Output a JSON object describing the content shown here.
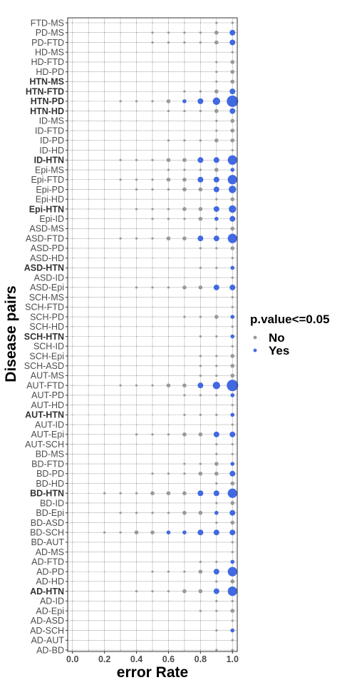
{
  "chart_data": {
    "type": "scatter",
    "xlabel": "error Rate",
    "ylabel": "Disease pairs",
    "x_ticks": [
      0.0,
      0.2,
      0.4,
      0.6,
      0.8,
      1.0
    ],
    "x_tick_labels": [
      "0.0",
      "0.2",
      "0.4",
      "0.6",
      "0.8",
      "1.0"
    ],
    "x_values": [
      0.0,
      0.1,
      0.2,
      0.3,
      0.4,
      0.5,
      0.6,
      0.7,
      0.8,
      0.9,
      1.0
    ],
    "xlim": [
      -0.03,
      1.03
    ],
    "grid": true,
    "legend": {
      "title": "p.value<=0.05",
      "position": "right",
      "entries": [
        {
          "label": "No",
          "color": "#999999"
        },
        {
          "label": "Yes",
          "color": "#4169E1"
        }
      ]
    },
    "colors": {
      "No": "#999999",
      "Yes": "#4169E1"
    },
    "categories": [
      "FTD-MS",
      "PD-MS",
      "PD-FTD",
      "HD-MS",
      "HD-FTD",
      "HD-PD",
      "HTN-MS",
      "HTN-FTD",
      "HTN-PD",
      "HTN-HD",
      "ID-MS",
      "ID-FTD",
      "ID-PD",
      "ID-HD",
      "ID-HTN",
      "Epi-MS",
      "Epi-FTD",
      "Epi-PD",
      "Epi-HD",
      "Epi-HTN",
      "Epi-ID",
      "ASD-MS",
      "ASD-FTD",
      "ASD-PD",
      "ASD-HD",
      "ASD-HTN",
      "ASD-ID",
      "ASD-Epi",
      "SCH-MS",
      "SCH-FTD",
      "SCH-PD",
      "SCH-HD",
      "SCH-HTN",
      "SCH-ID",
      "SCH-Epi",
      "SCH-ASD",
      "AUT-MS",
      "AUT-FTD",
      "AUT-PD",
      "AUT-HD",
      "AUT-HTN",
      "AUT-ID",
      "AUT-Epi",
      "AUT-SCH",
      "BD-MS",
      "BD-FTD",
      "BD-PD",
      "BD-HD",
      "BD-HTN",
      "BD-ID",
      "BD-Epi",
      "BD-ASD",
      "BD-SCH",
      "BD-AUT",
      "AD-MS",
      "AD-FTD",
      "AD-PD",
      "AD-HD",
      "AD-HTN",
      "AD-ID",
      "AD-Epi",
      "AD-ASD",
      "AD-SCH",
      "AD-AUT",
      "AD-BD"
    ],
    "bold_categories": [
      "HTN-MS",
      "HTN-FTD",
      "HTN-PD",
      "HTN-HD",
      "ID-HTN",
      "Epi-HTN",
      "ASD-HTN",
      "SCH-HTN",
      "AUT-HTN",
      "BD-HTN",
      "AD-HTN"
    ],
    "sizes": {
      "FTD-MS": [
        1,
        1,
        1,
        1,
        1,
        1,
        1,
        1,
        1,
        2,
        2
      ],
      "PD-MS": [
        1,
        1,
        1,
        1,
        1,
        2,
        2,
        2,
        2,
        3,
        4
      ],
      "PD-FTD": [
        1,
        1,
        1,
        1,
        1,
        2,
        2,
        2,
        2,
        3,
        4
      ],
      "HD-MS": [
        1,
        1,
        1,
        1,
        1,
        1,
        1,
        1,
        1,
        1,
        2
      ],
      "HD-FTD": [
        1,
        1,
        1,
        1,
        1,
        1,
        1,
        1,
        1,
        2,
        3
      ],
      "HD-PD": [
        1,
        1,
        1,
        1,
        1,
        1,
        1,
        1,
        1,
        2,
        3
      ],
      "HTN-MS": [
        1,
        1,
        1,
        1,
        1,
        1,
        1,
        1,
        1,
        2,
        3
      ],
      "HTN-FTD": [
        1,
        1,
        1,
        1,
        1,
        1,
        1,
        2,
        2,
        3,
        4
      ],
      "HTN-PD": [
        1,
        1,
        1,
        2,
        2,
        2,
        3,
        3,
        4,
        5,
        7
      ],
      "HTN-HD": [
        1,
        1,
        1,
        1,
        1,
        1,
        2,
        2,
        2,
        3,
        4
      ],
      "ID-MS": [
        1,
        1,
        1,
        1,
        1,
        1,
        1,
        1,
        1,
        2,
        3
      ],
      "ID-FTD": [
        1,
        1,
        1,
        1,
        1,
        1,
        1,
        1,
        1,
        2,
        3
      ],
      "ID-PD": [
        1,
        1,
        1,
        1,
        1,
        1,
        2,
        2,
        2,
        3,
        3
      ],
      "ID-HD": [
        1,
        1,
        1,
        1,
        1,
        1,
        1,
        1,
        1,
        1,
        2
      ],
      "ID-HTN": [
        1,
        1,
        1,
        2,
        2,
        2,
        3,
        3,
        4,
        4,
        6
      ],
      "Epi-MS": [
        1,
        1,
        1,
        1,
        1,
        1,
        2,
        2,
        2,
        3,
        3
      ],
      "Epi-FTD": [
        1,
        1,
        1,
        2,
        2,
        2,
        3,
        3,
        4,
        4,
        6
      ],
      "Epi-PD": [
        1,
        1,
        1,
        1,
        2,
        2,
        2,
        3,
        3,
        4,
        5
      ],
      "Epi-HD": [
        1,
        1,
        1,
        1,
        1,
        1,
        1,
        1,
        1,
        2,
        3
      ],
      "Epi-HTN": [
        1,
        1,
        1,
        1,
        2,
        2,
        2,
        3,
        3,
        4,
        5
      ],
      "Epi-ID": [
        1,
        1,
        1,
        1,
        1,
        2,
        2,
        2,
        3,
        3,
        4
      ],
      "ASD-MS": [
        1,
        1,
        1,
        1,
        1,
        1,
        1,
        1,
        1,
        2,
        3
      ],
      "ASD-FTD": [
        1,
        1,
        1,
        2,
        2,
        2,
        3,
        3,
        4,
        4,
        6
      ],
      "ASD-PD": [
        1,
        1,
        1,
        1,
        1,
        1,
        1,
        1,
        2,
        2,
        3
      ],
      "ASD-HD": [
        1,
        1,
        1,
        1,
        1,
        1,
        1,
        1,
        1,
        1,
        2
      ],
      "ASD-HTN": [
        1,
        1,
        1,
        1,
        1,
        1,
        1,
        1,
        2,
        2,
        3
      ],
      "ASD-ID": [
        1,
        1,
        1,
        1,
        1,
        1,
        1,
        1,
        1,
        1,
        2
      ],
      "ASD-Epi": [
        1,
        1,
        1,
        1,
        2,
        2,
        2,
        3,
        3,
        4,
        4
      ],
      "SCH-MS": [
        1,
        1,
        1,
        1,
        1,
        1,
        1,
        1,
        1,
        1,
        2
      ],
      "SCH-FTD": [
        1,
        1,
        1,
        1,
        1,
        1,
        1,
        1,
        1,
        1,
        2
      ],
      "SCH-PD": [
        1,
        1,
        1,
        1,
        1,
        1,
        1,
        2,
        2,
        3,
        3
      ],
      "SCH-HD": [
        1,
        1,
        1,
        1,
        1,
        1,
        1,
        1,
        1,
        1,
        2
      ],
      "SCH-HTN": [
        1,
        1,
        1,
        1,
        1,
        1,
        1,
        1,
        2,
        2,
        3
      ],
      "SCH-ID": [
        1,
        1,
        1,
        1,
        1,
        1,
        1,
        1,
        1,
        1,
        2
      ],
      "SCH-Epi": [
        1,
        1,
        1,
        1,
        1,
        1,
        1,
        1,
        2,
        2,
        3
      ],
      "SCH-ASD": [
        1,
        1,
        1,
        1,
        1,
        1,
        1,
        1,
        2,
        2,
        3
      ],
      "AUT-MS": [
        1,
        1,
        1,
        1,
        1,
        1,
        1,
        1,
        2,
        2,
        3
      ],
      "AUT-FTD": [
        1,
        1,
        1,
        2,
        2,
        2,
        3,
        3,
        4,
        5,
        7
      ],
      "AUT-PD": [
        1,
        1,
        1,
        1,
        1,
        1,
        1,
        2,
        2,
        2,
        3
      ],
      "AUT-HD": [
        1,
        1,
        1,
        1,
        1,
        1,
        1,
        1,
        1,
        1,
        2
      ],
      "AUT-HTN": [
        1,
        1,
        1,
        1,
        1,
        1,
        1,
        2,
        2,
        2,
        3
      ],
      "AUT-ID": [
        1,
        1,
        1,
        1,
        1,
        1,
        1,
        1,
        1,
        1,
        2
      ],
      "AUT-Epi": [
        1,
        1,
        1,
        1,
        2,
        2,
        2,
        3,
        3,
        4,
        4
      ],
      "AUT-SCH": [
        1,
        1,
        1,
        1,
        1,
        1,
        1,
        1,
        1,
        2,
        2
      ],
      "BD-MS": [
        1,
        1,
        1,
        1,
        1,
        1,
        1,
        1,
        1,
        2,
        2
      ],
      "BD-FTD": [
        1,
        1,
        1,
        1,
        1,
        1,
        1,
        2,
        2,
        3,
        3
      ],
      "BD-PD": [
        1,
        1,
        1,
        1,
        1,
        2,
        2,
        2,
        3,
        3,
        4
      ],
      "BD-HD": [
        1,
        1,
        1,
        1,
        1,
        1,
        1,
        1,
        1,
        2,
        3
      ],
      "BD-HTN": [
        1,
        1,
        2,
        2,
        2,
        3,
        3,
        3,
        4,
        4,
        6
      ],
      "BD-ID": [
        1,
        1,
        1,
        1,
        1,
        1,
        1,
        1,
        1,
        2,
        3
      ],
      "BD-Epi": [
        1,
        1,
        1,
        2,
        2,
        2,
        2,
        3,
        3,
        3,
        4
      ],
      "BD-ASD": [
        1,
        1,
        1,
        1,
        1,
        1,
        1,
        1,
        1,
        2,
        3
      ],
      "BD-SCH": [
        1,
        1,
        2,
        2,
        3,
        3,
        3,
        3,
        4,
        4,
        4
      ],
      "BD-AUT": [
        1,
        1,
        1,
        1,
        1,
        1,
        1,
        1,
        1,
        1,
        2
      ],
      "AD-MS": [
        1,
        1,
        1,
        1,
        1,
        1,
        1,
        1,
        1,
        1,
        2
      ],
      "AD-FTD": [
        1,
        1,
        1,
        1,
        1,
        1,
        1,
        1,
        2,
        2,
        3
      ],
      "AD-PD": [
        1,
        1,
        1,
        1,
        1,
        2,
        2,
        2,
        3,
        4,
        6
      ],
      "AD-HD": [
        1,
        1,
        1,
        1,
        1,
        1,
        1,
        1,
        1,
        2,
        3
      ],
      "AD-HTN": [
        1,
        1,
        1,
        1,
        2,
        2,
        2,
        3,
        3,
        4,
        6
      ],
      "AD-ID": [
        1,
        1,
        1,
        1,
        1,
        1,
        1,
        1,
        1,
        2,
        2
      ],
      "AD-Epi": [
        1,
        1,
        1,
        1,
        1,
        1,
        1,
        1,
        2,
        2,
        3
      ],
      "AD-ASD": [
        1,
        1,
        1,
        1,
        1,
        1,
        1,
        1,
        1,
        1,
        2
      ],
      "AD-SCH": [
        1,
        1,
        1,
        1,
        1,
        1,
        1,
        1,
        1,
        2,
        3
      ],
      "AD-AUT": [
        1,
        1,
        1,
        1,
        1,
        1,
        1,
        1,
        1,
        1,
        2
      ],
      "AD-BD": [
        1,
        1,
        1,
        1,
        1,
        1,
        1,
        1,
        1,
        2,
        2
      ]
    },
    "significant": {
      "PD-MS": [
        1.0
      ],
      "PD-FTD": [
        1.0
      ],
      "HTN-FTD": [
        1.0
      ],
      "HTN-PD": [
        0.7,
        0.8,
        0.9,
        1.0
      ],
      "HTN-HD": [
        1.0
      ],
      "ID-HTN": [
        0.8,
        0.9,
        1.0
      ],
      "Epi-MS": [
        1.0
      ],
      "Epi-FTD": [
        0.8,
        0.9,
        1.0
      ],
      "Epi-PD": [
        0.9,
        1.0
      ],
      "Epi-HTN": [
        0.9,
        1.0
      ],
      "Epi-ID": [
        0.9,
        1.0
      ],
      "ASD-FTD": [
        0.8,
        0.9,
        1.0
      ],
      "ASD-HTN": [
        1.0
      ],
      "ASD-Epi": [
        0.9,
        1.0
      ],
      "SCH-PD": [
        1.0
      ],
      "SCH-HTN": [
        1.0
      ],
      "AUT-FTD": [
        0.8,
        0.9,
        1.0
      ],
      "AUT-PD": [
        1.0
      ],
      "AUT-HTN": [
        1.0
      ],
      "AUT-Epi": [
        0.9,
        1.0
      ],
      "BD-FTD": [
        1.0
      ],
      "BD-PD": [
        1.0
      ],
      "BD-HTN": [
        0.8,
        0.9,
        1.0
      ],
      "BD-Epi": [
        0.9,
        1.0
      ],
      "BD-SCH": [
        0.6,
        0.7,
        0.8,
        0.9,
        1.0
      ],
      "AD-FTD": [
        1.0
      ],
      "AD-PD": [
        0.9,
        1.0
      ],
      "AD-HTN": [
        0.9,
        1.0
      ],
      "AD-SCH": [
        1.0
      ]
    }
  }
}
